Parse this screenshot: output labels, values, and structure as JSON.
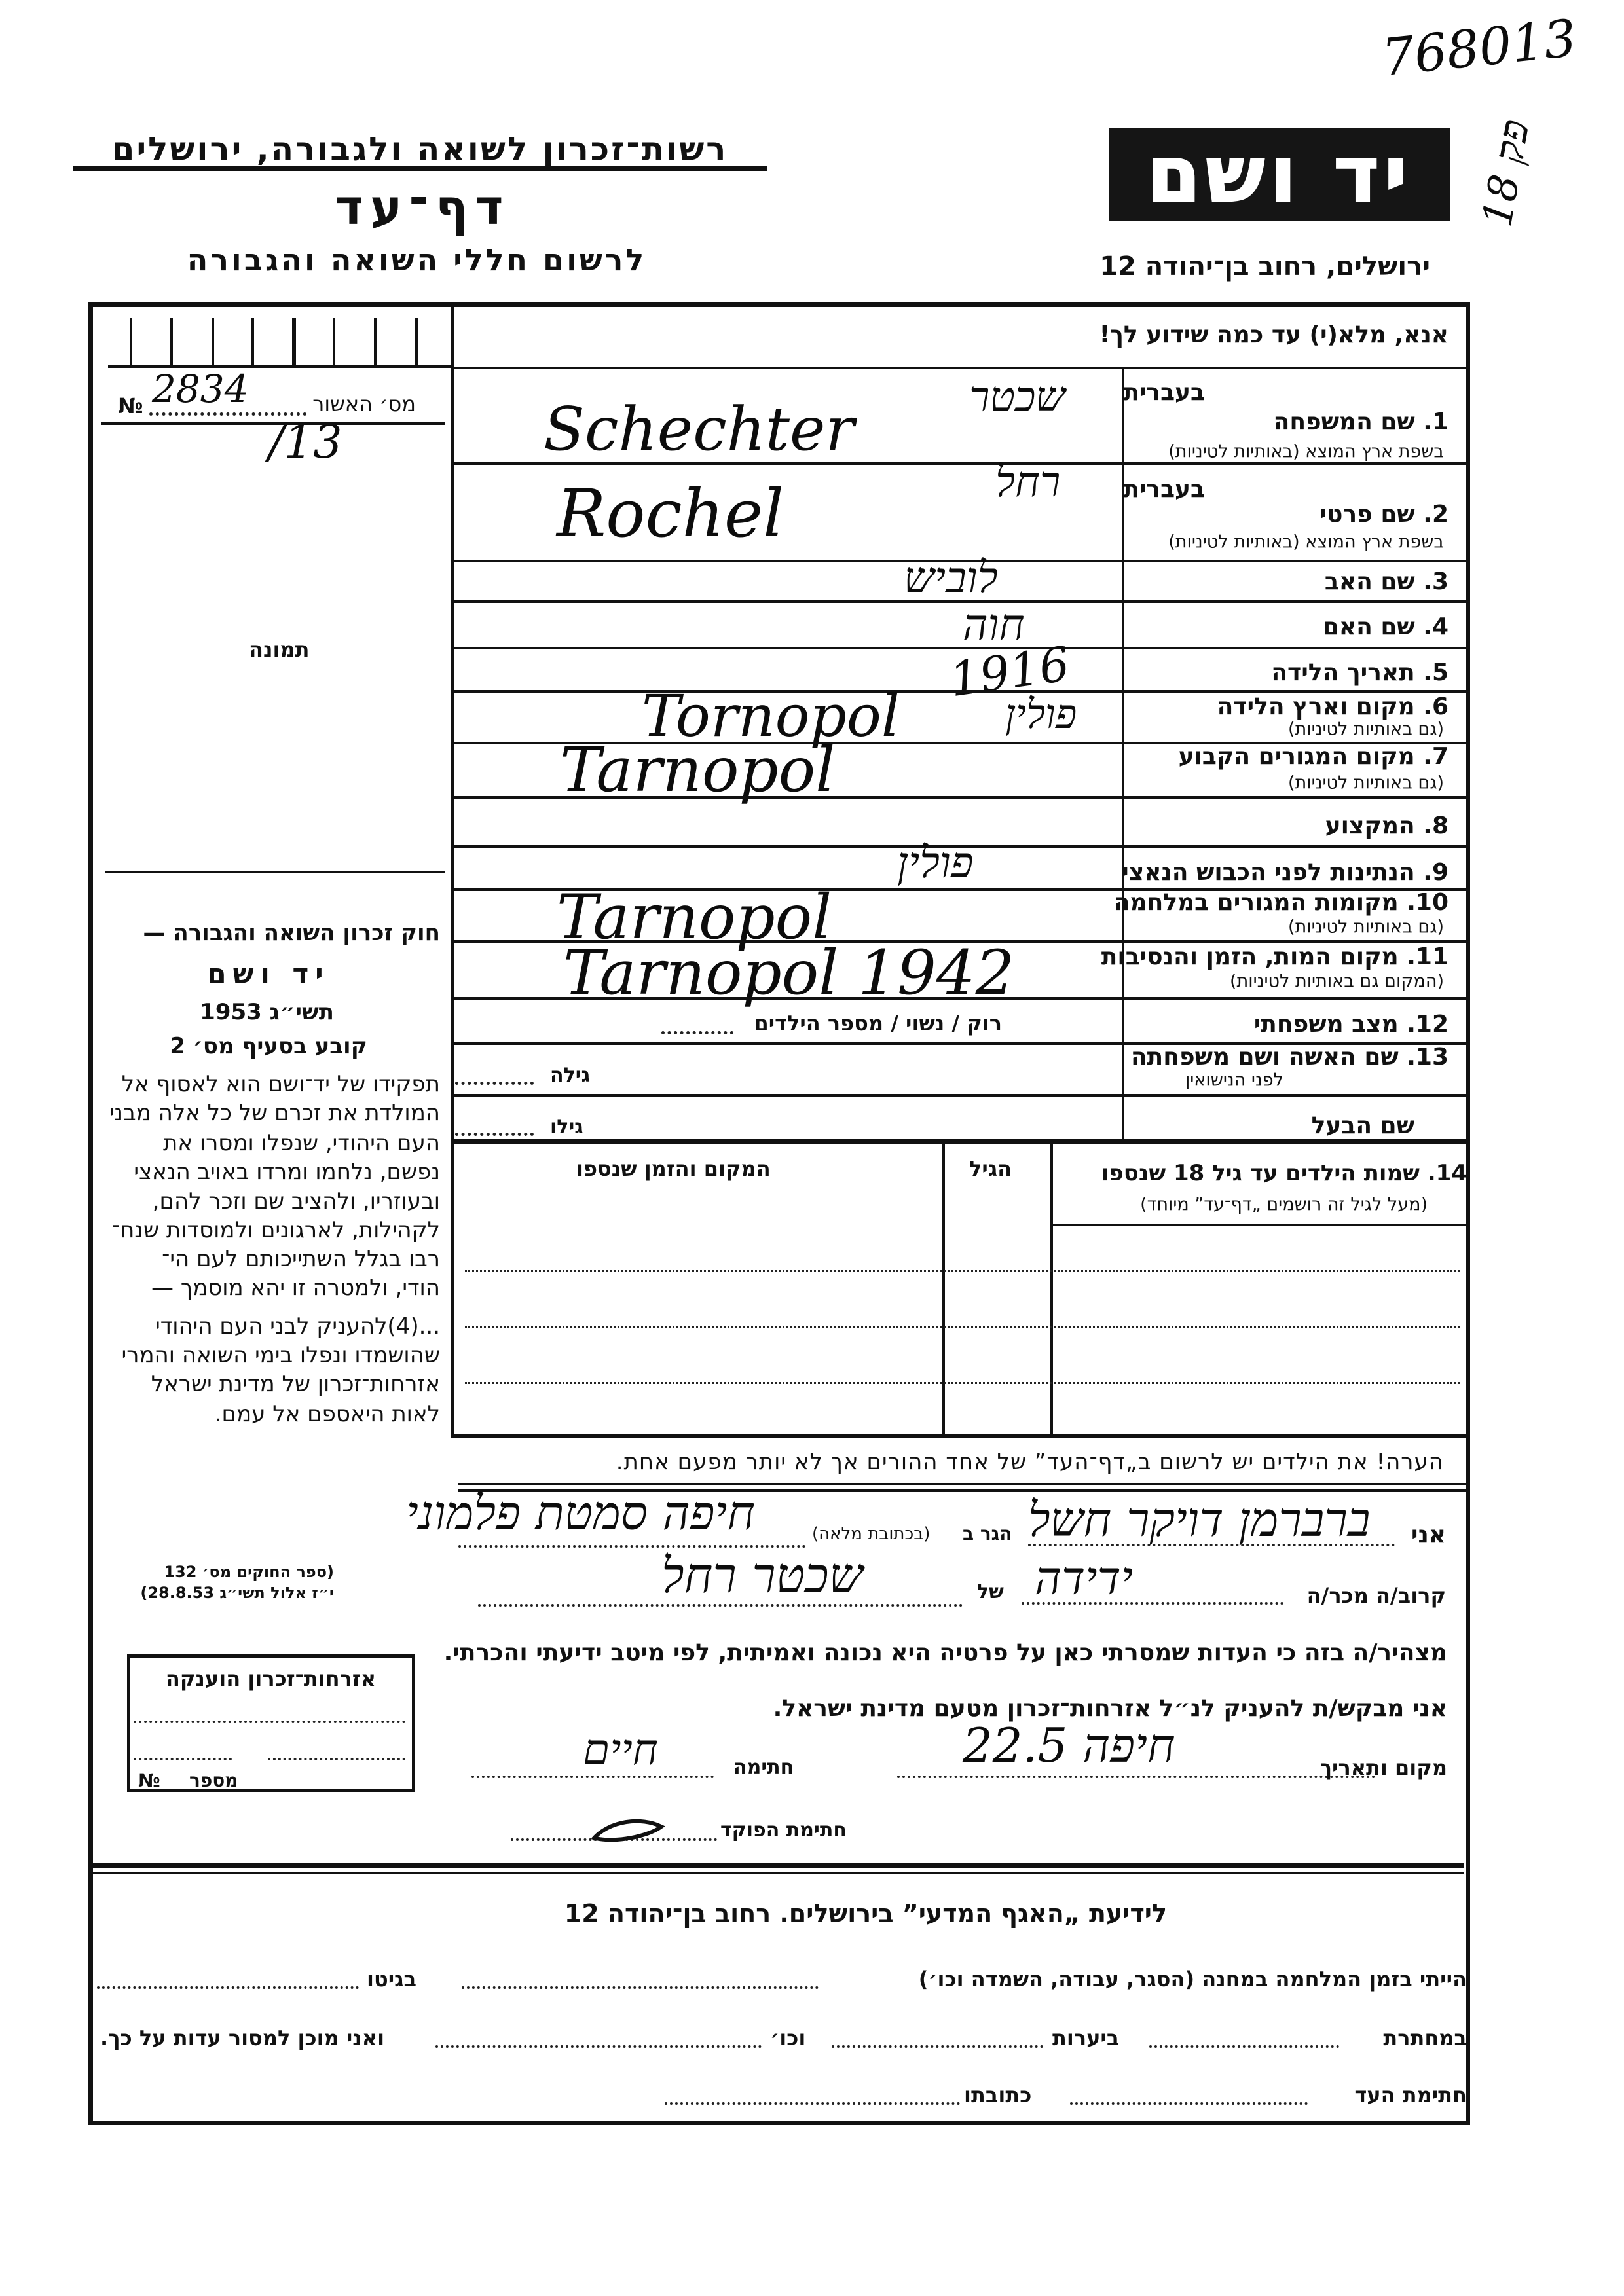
{
  "header": {
    "organization": "רשות־זכרון לשואה ולגבורה, ירושלים",
    "title": "דף־עד",
    "subtitle": "לרשום חללי השואה והגבורה",
    "logo_text": "יד ושם",
    "address": "ירושלים, רחוב בן־יהודה 12",
    "handwritten_archive_number": "768013",
    "handwritten_margin_note": "פק 18"
  },
  "form": {
    "instruction": "אנא, מלא(י) עד כמה שידוע לך!",
    "approval_label": "מס׳ האשור",
    "approval_no_symbol": "№",
    "approval_number": "2834",
    "approval_suffix": "/13",
    "photo_label": "תמונה",
    "hebrew_label": "בעברית",
    "fields": [
      {
        "label": "1. שם המשפחה",
        "sublabel": "בשפת ארץ המוצא (באותיות לטיניות)",
        "value_hebrew": "שכטר",
        "value_latin": "Schechter"
      },
      {
        "label": "2. שם פרטי",
        "sublabel": "בשפת ארץ המוצא (באותיות לטיניות)",
        "value_hebrew": "רחל",
        "value_latin": "Rochel"
      },
      {
        "label": "3. שם האב",
        "value_hebrew": "לוביש"
      },
      {
        "label": "4. שם האם",
        "value_hebrew": "חוה"
      },
      {
        "label": "5. תאריך הלידה",
        "value": "1916"
      },
      {
        "label": "6. מקום וארץ הלידה",
        "sublabel": "(גם באותיות לטיניות)",
        "value_hebrew": "פולין",
        "value_latin": "Tornopol"
      },
      {
        "label": "7. מקום המגורים הקבוע",
        "sublabel": "(גם באותיות לטיניות)",
        "value_latin": "Tarnopol"
      },
      {
        "label": "8. המקצוע"
      },
      {
        "label": "9. הנתינות לפני הכבוש הנאצי",
        "value_hebrew": "פולין"
      },
      {
        "label": "10. מקומות המגורים במלחמה",
        "sublabel": "(גם באותיות לטיניות)",
        "value_latin": "Tarnopol"
      },
      {
        "label": "11. מקום המות, הזמן והנסיבות",
        "sublabel": "(המקום גם באותיות לטיניות)",
        "value_latin": "Tarnopol 1942"
      },
      {
        "label": "12. מצב משפחתי",
        "options_text": "רוק / נשוי / מספר הילדים"
      },
      {
        "label": "13. שם האשה ושם משפחתה",
        "sublabel": "לפני הנישואין",
        "age_label": "גילה"
      },
      {
        "label": "שם הבעל",
        "age_label": "גילו"
      }
    ],
    "children": {
      "label": "14. שמות הילדים עד גיל 18 שנספו",
      "sublabel": "(מעל לגיל זה רושמים „דף־עד” מיוחד)",
      "age_header": "הגיל",
      "place_time_header": "המקום והזמן שנספו"
    },
    "note": "הערה!   את הילדים יש לרשום ב„דף־העד” של אחד ההורים אך לא יותר מפעם אחת."
  },
  "law": {
    "title": "חוק זכרון השואה והגבורה —",
    "name": "יד ושם",
    "year": "תשי״ג 1953",
    "clause": "קובע בסעיף מס׳ 2",
    "lines": [
      "תפקידו של יד־ושם הוא לאסוף אל",
      "המולדת את זכרם של כל אלה מבני",
      "העם היהודי, שנפלו ומסרו את",
      "נפשם, נלחמו ומרדו באויב הנאצי",
      "ובעוזריו, ולהציב שם וזכר להם,",
      "לקהילות, לארגונים ולמוסדות שנח־",
      "רבו בגלל השתייכותם לעם הי־",
      "הודי, ולמטרה זו יהא מוסמך —",
      "...(4)להעניק לבני העם היהודי",
      "שהושמדו ונפלו בימי השואה והמרי",
      "אזרחות־זכרון של מדינת ישראל",
      "לאות היאספם אל עמם."
    ],
    "footnote_1": "(ספר החוקים מס׳ 132",
    "footnote_2": "י״ז אלול תשי״ג 28.8.53)"
  },
  "citizenship_box": {
    "title": "אזרחות־זכרון הוענקה",
    "number_label": "מספר",
    "number_symbol": "№"
  },
  "declaration": {
    "i_label": "אני",
    "declarant_name": "ברברמן דויקר חשל",
    "residing_label": "הגר ב",
    "address_hint": "(בכתובת מלאה)",
    "address": "חיפה סמטת פלמוני",
    "relation_label": "קרוב/ה מכר/ה",
    "relation": "ידידה",
    "of_label": "של",
    "victim_name": "שכטר רחל",
    "statement": "מצהיר/ה בזה כי העדות שמסרתי כאן על פרטיה היא נכונה ואמיתית, לפי מיטב ידיעתי והכרתי.",
    "request": "אני מבקש/ת להעניק לנ״ל אזרחות־זכרון מטעם מדינת ישראל.",
    "place_date_label": "מקום ותאריך",
    "place_date": "חיפה 22.5",
    "signature_label": "חתימה",
    "signature": "חיים",
    "official_signature_label": "חתימת הפוקד"
  },
  "scientific_dept": {
    "title": "לידיעת „האגף המדעי” בירושלים.   רחוב בן־יהודה 12",
    "camp_text": "הייתי בזמן המלחמה במחנה (הסגר, עבודה, השמדה וכו׳)",
    "ghetto_label": "בגיטו",
    "underground_label": "במחתרת",
    "forests_label": "ביערות",
    "etc_label": "וכו׳",
    "testify_text": "ואני מוכן למסור עדות על כך.",
    "witness_signature_label": "חתימת העד",
    "address_label": "כתובתו"
  }
}
